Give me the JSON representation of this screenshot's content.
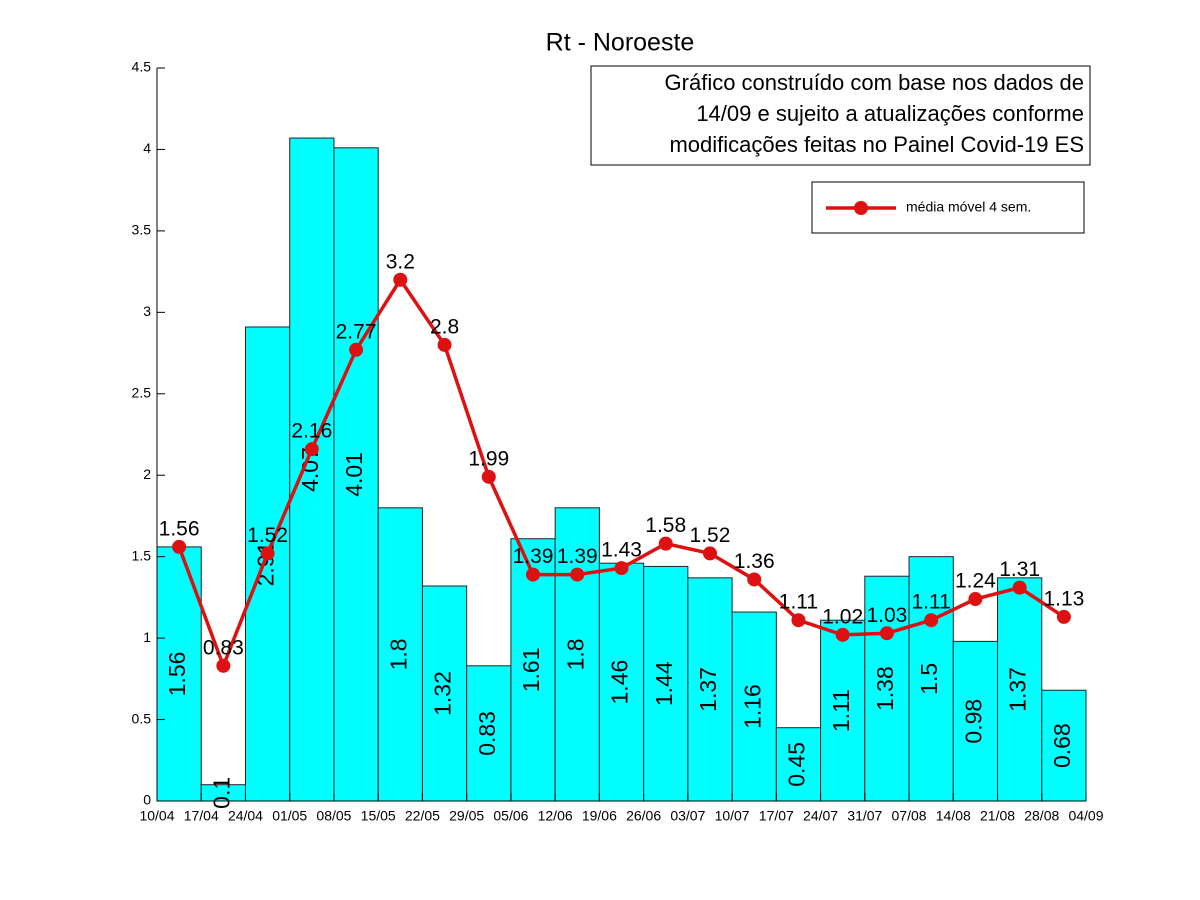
{
  "chart_data": {
    "type": "bar_line",
    "title": "Rt - Noroeste",
    "annotation": [
      "Gráfico construído com base nos dados de",
      "14/09 e sujeito a atualizações conforme",
      "modificações feitas no Painel Covid-19 ES"
    ],
    "xtick_labels": [
      "10/04",
      "17/04",
      "24/04",
      "01/05",
      "08/05",
      "15/05",
      "22/05",
      "29/05",
      "05/06",
      "12/06",
      "19/06",
      "26/06",
      "03/07",
      "10/07",
      "17/07",
      "24/07",
      "31/07",
      "07/08",
      "14/08",
      "21/08",
      "28/08",
      "04/09"
    ],
    "bars": {
      "color": "#00ffff",
      "values": [
        1.56,
        0.1,
        2.91,
        4.07,
        4.01,
        1.8,
        1.32,
        0.83,
        1.61,
        1.8,
        1.46,
        1.44,
        1.37,
        1.16,
        0.45,
        1.11,
        1.38,
        1.5,
        0.98,
        1.37,
        0.68
      ]
    },
    "series": [
      {
        "name": "média móvel 4 sem.",
        "color": "#dd1111",
        "values": [
          1.56,
          0.83,
          1.52,
          2.16,
          2.77,
          3.2,
          2.8,
          1.99,
          1.39,
          1.39,
          1.43,
          1.58,
          1.52,
          1.36,
          1.11,
          1.02,
          1.03,
          1.11,
          1.24,
          1.31,
          1.13
        ]
      }
    ],
    "ylim": [
      0,
      4.5
    ],
    "yticks": [
      0,
      0.5,
      1,
      1.5,
      2,
      2.5,
      3,
      3.5,
      4,
      4.5
    ],
    "legend": "upper right"
  }
}
